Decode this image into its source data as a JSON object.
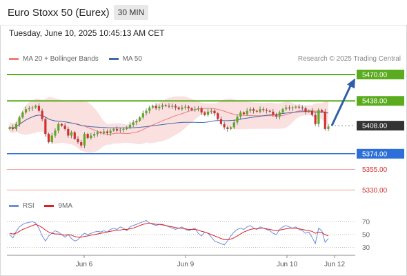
{
  "header": {
    "title": "Euro Stoxx 50 (Eurex)",
    "timeframe": "30 MIN",
    "datetime": "Tuesday, June 10, 2025 10:45:13 AM CET"
  },
  "legend": {
    "ma20": "MA 20 + Bollinger Bands",
    "ma50": "MA 50",
    "credit": "Research © 2025 Trading Central"
  },
  "rsi_legend": {
    "rsi": "RSI",
    "ma9": "9MA"
  },
  "colors": {
    "resistance": "#5aab1e",
    "support": "#2c6fd8",
    "level_line": "#f0a0a0",
    "current": "#333333",
    "bull": "#5aab1e",
    "bear": "#d23030",
    "band": "#f9d6d6",
    "ma20": "#f07c7c",
    "ma50": "#3e6aa8",
    "arrow": "#2f5fa6",
    "rsi": "#6b8ee0",
    "rsi_ma": "#e02020"
  },
  "chart_data": [
    {
      "type": "candlestick",
      "title": "Euro Stoxx 50 (Eurex)",
      "timeframe": "30 MIN",
      "x_ticks": [
        "Jun 6",
        "Jun 9",
        "Jun 10",
        "Jun 12"
      ],
      "ylim": [
        5322,
        5480
      ],
      "levels": [
        {
          "value": 5470.0,
          "label": "5470.00",
          "kind": "resistance"
        },
        {
          "value": 5438.0,
          "label": "5438.00",
          "kind": "resistance"
        },
        {
          "value": 5408.0,
          "label": "5408.00",
          "kind": "current"
        },
        {
          "value": 5374.0,
          "label": "5374.00",
          "kind": "support"
        },
        {
          "value": 5355.0,
          "label": "5355.00",
          "kind": "level"
        },
        {
          "value": 5330.0,
          "label": "5330.00",
          "kind": "level"
        }
      ],
      "close": [
        5406,
        5404,
        5410,
        5418,
        5424,
        5428,
        5429,
        5430,
        5432,
        5426,
        5416,
        5398,
        5388,
        5396,
        5402,
        5410,
        5408,
        5404,
        5396,
        5400,
        5392,
        5388,
        5384,
        5398,
        5393,
        5396,
        5398,
        5400,
        5399,
        5401,
        5399,
        5402,
        5404,
        5402,
        5403,
        5404,
        5406,
        5409,
        5412,
        5414,
        5418,
        5423,
        5426,
        5430,
        5432,
        5429,
        5431,
        5433,
        5432,
        5431,
        5432,
        5430,
        5428,
        5430,
        5431,
        5429,
        5427,
        5428,
        5429,
        5424,
        5421,
        5425,
        5426,
        5423,
        5416,
        5410,
        5406,
        5404,
        5406,
        5412,
        5419,
        5424,
        5422,
        5426,
        5428,
        5426,
        5425,
        5428,
        5427,
        5426,
        5425,
        5421,
        5419,
        5424,
        5428,
        5430,
        5429,
        5430,
        5431,
        5430,
        5429,
        5425,
        5426,
        5421,
        5410,
        5427,
        5425,
        5404,
        5407
      ],
      "arrow": {
        "from": 5408,
        "to": 5463
      }
    },
    {
      "type": "line",
      "title": "RSI",
      "yticks": [
        70,
        50,
        30
      ],
      "series": [
        {
          "name": "RSI",
          "values": [
            50,
            45,
            55,
            62,
            66,
            68,
            69,
            70,
            68,
            60,
            48,
            40,
            48,
            52,
            56,
            54,
            50,
            46,
            50,
            44,
            40,
            42,
            48,
            52,
            50,
            52,
            54,
            55,
            54,
            56,
            54,
            58,
            60,
            58,
            62,
            60,
            56,
            62,
            64,
            66,
            68,
            70,
            72,
            68,
            66,
            64,
            66,
            66,
            64,
            62,
            60,
            58,
            60,
            62,
            58,
            56,
            58,
            60,
            52,
            48,
            54,
            52,
            46,
            40,
            38,
            36,
            34,
            40,
            48,
            54,
            58,
            60,
            58,
            62,
            64,
            60,
            58,
            62,
            60,
            58,
            56,
            52,
            50,
            58,
            62,
            64,
            62,
            60,
            62,
            58,
            56,
            52,
            54,
            46,
            36,
            60,
            56,
            38,
            44
          ]
        },
        {
          "name": "9MA",
          "values": [
            52,
            51,
            52,
            55,
            58,
            60,
            62,
            64,
            66,
            64,
            61,
            57,
            54,
            52,
            51,
            51,
            50,
            49,
            50,
            49,
            47,
            46,
            46,
            47,
            48,
            49,
            50,
            51,
            52,
            53,
            54,
            55,
            56,
            57,
            57,
            58,
            58,
            59,
            60,
            62,
            64,
            66,
            67,
            68,
            67,
            66,
            66,
            65,
            64,
            63,
            62,
            61,
            60,
            60,
            59,
            58,
            58,
            58,
            57,
            55,
            54,
            52,
            50,
            48,
            46,
            44,
            42,
            42,
            43,
            45,
            48,
            51,
            54,
            56,
            58,
            59,
            59,
            60,
            60,
            59,
            58,
            57,
            56,
            57,
            58,
            59,
            60,
            60,
            60,
            59,
            58,
            57,
            56,
            55,
            52,
            54,
            53,
            50,
            48
          ]
        }
      ]
    }
  ]
}
